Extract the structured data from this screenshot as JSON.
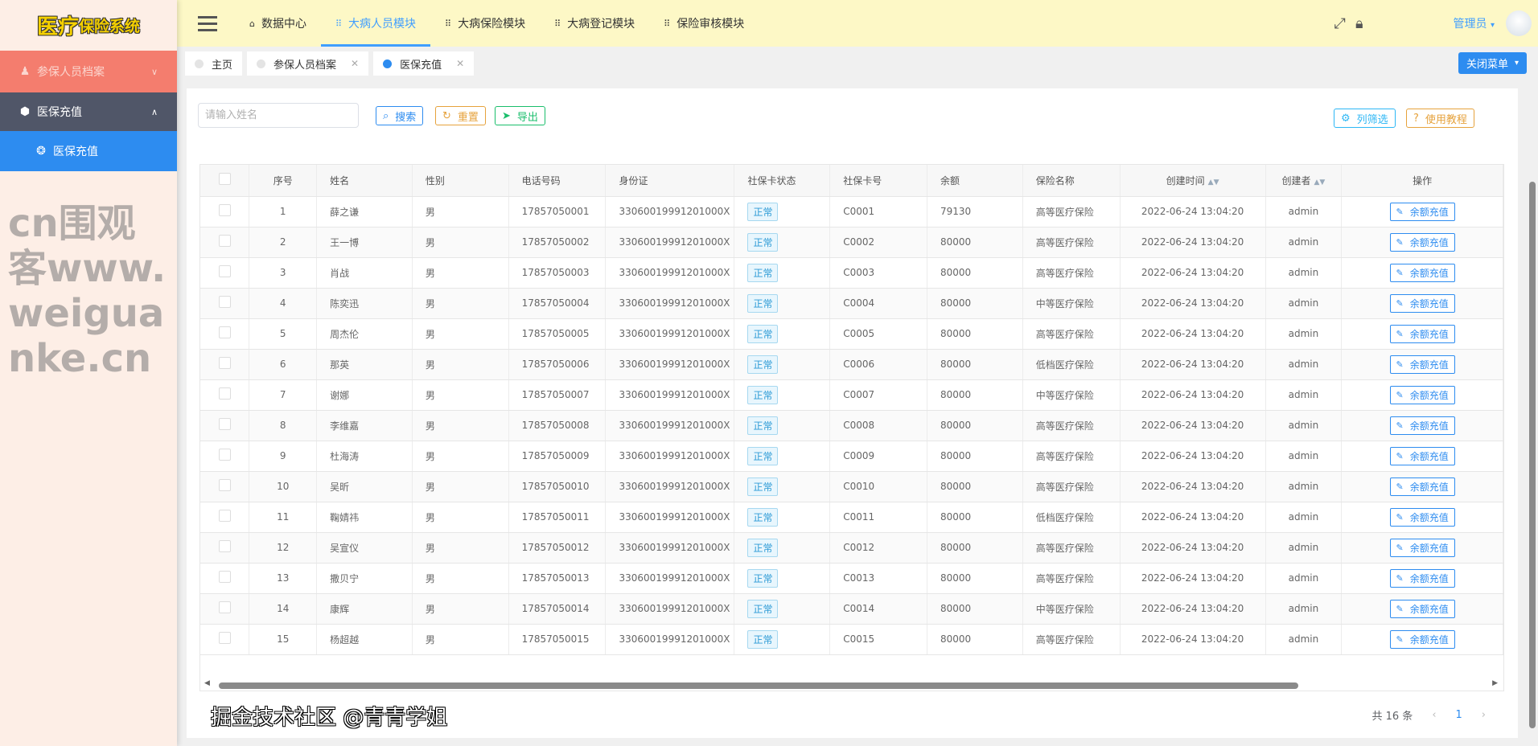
{
  "app": {
    "logo": "医疗保险系统",
    "logo_big": "医疗",
    "logo_small": "保险系统"
  },
  "sidebar": {
    "items": [
      {
        "label": "参保人员档案",
        "icon": "user-icon"
      },
      {
        "label": "医保充值",
        "icon": "cube-icon"
      },
      {
        "label": "医保充值",
        "icon": "circle-icon"
      }
    ]
  },
  "header": {
    "nav": [
      {
        "label": "数据中心",
        "icon": "home-icon"
      },
      {
        "label": "大病人员模块",
        "icon": "grid-icon",
        "active": true
      },
      {
        "label": "大病保险模块",
        "icon": "grid-icon"
      },
      {
        "label": "大病登记模块",
        "icon": "grid-icon"
      },
      {
        "label": "保险审核模块",
        "icon": "grid-icon"
      }
    ],
    "user": "管理员"
  },
  "tabs": [
    {
      "label": "主页"
    },
    {
      "label": "参保人员档案"
    },
    {
      "label": "医保充值",
      "active": true
    }
  ],
  "close_menu": "关闭菜单",
  "toolbar": {
    "search_placeholder": "请输入姓名",
    "search": "搜索",
    "reset": "重置",
    "export": "导出",
    "columns": "列筛选",
    "tutorial": "使用教程"
  },
  "table": {
    "headers": [
      "序号",
      "姓名",
      "性别",
      "电话号码",
      "身份证",
      "社保卡状态",
      "社保卡号",
      "余额",
      "保险名称",
      "创建时间",
      "创建者",
      "操作"
    ],
    "action": "余额充值",
    "rows": [
      [
        "1",
        "薛之谦",
        "男",
        "17857050001",
        "33060019991201000X",
        "正常",
        "C0001",
        "79130",
        "高等医疗保险",
        "2022-06-24 13:04:20",
        "admin"
      ],
      [
        "2",
        "王一博",
        "男",
        "17857050002",
        "33060019991201000X",
        "正常",
        "C0002",
        "80000",
        "高等医疗保险",
        "2022-06-24 13:04:20",
        "admin"
      ],
      [
        "3",
        "肖战",
        "男",
        "17857050003",
        "33060019991201000X",
        "正常",
        "C0003",
        "80000",
        "高等医疗保险",
        "2022-06-24 13:04:20",
        "admin"
      ],
      [
        "4",
        "陈奕迅",
        "男",
        "17857050004",
        "33060019991201000X",
        "正常",
        "C0004",
        "80000",
        "中等医疗保险",
        "2022-06-24 13:04:20",
        "admin"
      ],
      [
        "5",
        "周杰伦",
        "男",
        "17857050005",
        "33060019991201000X",
        "正常",
        "C0005",
        "80000",
        "高等医疗保险",
        "2022-06-24 13:04:20",
        "admin"
      ],
      [
        "6",
        "那英",
        "男",
        "17857050006",
        "33060019991201000X",
        "正常",
        "C0006",
        "80000",
        "低档医疗保险",
        "2022-06-24 13:04:20",
        "admin"
      ],
      [
        "7",
        "谢娜",
        "男",
        "17857050007",
        "33060019991201000X",
        "正常",
        "C0007",
        "80000",
        "中等医疗保险",
        "2022-06-24 13:04:20",
        "admin"
      ],
      [
        "8",
        "李维嘉",
        "男",
        "17857050008",
        "33060019991201000X",
        "正常",
        "C0008",
        "80000",
        "高等医疗保险",
        "2022-06-24 13:04:20",
        "admin"
      ],
      [
        "9",
        "杜海涛",
        "男",
        "17857050009",
        "33060019991201000X",
        "正常",
        "C0009",
        "80000",
        "高等医疗保险",
        "2022-06-24 13:04:20",
        "admin"
      ],
      [
        "10",
        "吴昕",
        "男",
        "17857050010",
        "33060019991201000X",
        "正常",
        "C0010",
        "80000",
        "高等医疗保险",
        "2022-06-24 13:04:20",
        "admin"
      ],
      [
        "11",
        "鞠婧祎",
        "男",
        "17857050011",
        "33060019991201000X",
        "正常",
        "C0011",
        "80000",
        "低档医疗保险",
        "2022-06-24 13:04:20",
        "admin"
      ],
      [
        "12",
        "吴宣仪",
        "男",
        "17857050012",
        "33060019991201000X",
        "正常",
        "C0012",
        "80000",
        "高等医疗保险",
        "2022-06-24 13:04:20",
        "admin"
      ],
      [
        "13",
        "撒贝宁",
        "男",
        "17857050013",
        "33060019991201000X",
        "正常",
        "C0013",
        "80000",
        "高等医疗保险",
        "2022-06-24 13:04:20",
        "admin"
      ],
      [
        "14",
        "康辉",
        "男",
        "17857050014",
        "33060019991201000X",
        "正常",
        "C0014",
        "80000",
        "中等医疗保险",
        "2022-06-24 13:04:20",
        "admin"
      ],
      [
        "15",
        "杨超越",
        "男",
        "17857050015",
        "33060019991201000X",
        "正常",
        "C0015",
        "80000",
        "高等医疗保险",
        "2022-06-24 13:04:20",
        "admin"
      ]
    ]
  },
  "pagination": {
    "total": "共 16 条",
    "current": "1"
  },
  "watermarks": [
    "cn围观客www.weiguanke.cn",
    "掘金技术社区 @青青学姐"
  ],
  "colors": {
    "header_bg": "#fdf8c6",
    "sidebar_bg": "#fdeee6",
    "primary": "#2d8cf0",
    "active_nav": "#409eff",
    "menu_salmon": "#f47d6e",
    "menu_dark": "#505668"
  }
}
